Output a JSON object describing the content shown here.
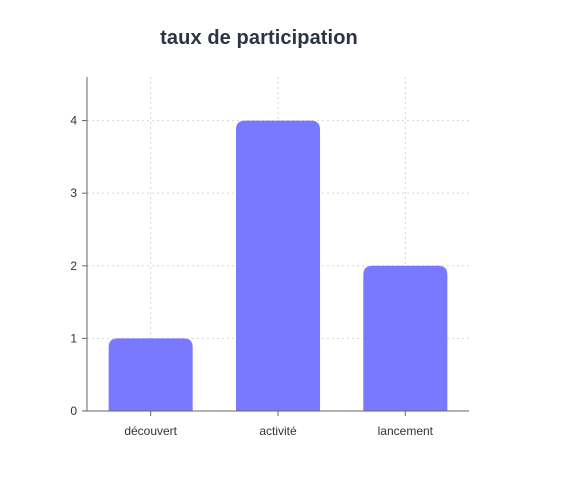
{
  "chart_data": {
    "type": "bar",
    "title": "taux de participation",
    "categories": [
      "découvert",
      "activité",
      "lancement"
    ],
    "values": [
      1,
      4,
      2
    ],
    "ylim": [
      0,
      4.6
    ],
    "yticks": [
      0,
      1,
      2,
      3,
      4
    ],
    "xlabel": "",
    "ylabel": "",
    "grid": true,
    "bar_color": "#7979ff",
    "grid_color": "#d6d6d6",
    "axis_color": "#666666"
  }
}
